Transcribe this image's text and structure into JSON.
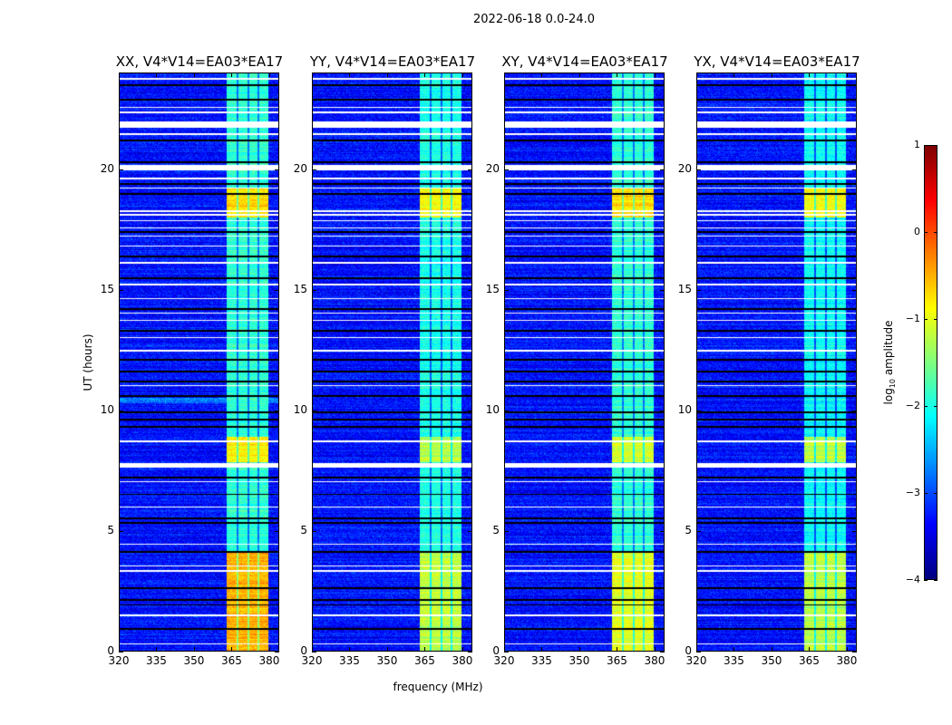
{
  "suptitle": "2022-06-18 0.0-24.0",
  "chart_data": {
    "type": "heatmap",
    "xlabel": "frequency (MHz)",
    "ylabel": "UT (hours)",
    "xlim": [
      320,
      384
    ],
    "ylim": [
      0,
      24
    ],
    "xticks": [
      "320",
      "335",
      "350",
      "365",
      "380"
    ],
    "xtick_values": [
      320,
      335,
      350,
      365,
      380
    ],
    "yticks": [
      "0",
      "5",
      "10",
      "15",
      "20"
    ],
    "ytick_values": [
      0,
      5,
      10,
      15,
      20
    ],
    "panels": [
      {
        "title": "XX, V4*V14=EA03*EA17",
        "band_levels": {
          "low": -0.5,
          "mid": -0.8,
          "upper": -0.7,
          "default": -1.9
        }
      },
      {
        "title": "YY, V4*V14=EA03*EA17",
        "band_levels": {
          "low": -1.2,
          "mid": -1.2,
          "upper": -0.9,
          "default": -2.0
        }
      },
      {
        "title": "XY, V4*V14=EA03*EA17",
        "band_levels": {
          "low": -1.0,
          "mid": -1.1,
          "upper": -0.7,
          "default": -1.9
        }
      },
      {
        "title": "YX, V4*V14=EA03*EA17",
        "band_levels": {
          "low": -1.2,
          "mid": -1.2,
          "upper": -0.9,
          "default": -2.1
        }
      }
    ],
    "features": {
      "background_level": -3.3,
      "band_mhz": [
        363,
        380
      ],
      "subbands_mhz": [
        [
          363,
          367.3
        ],
        [
          367.8,
          371.6
        ],
        [
          372.2,
          375.6
        ],
        [
          376.5,
          380
        ]
      ],
      "bright_intervals_hours": {
        "low": [
          0,
          4.1
        ],
        "mid": [
          7.85,
          8.9
        ],
        "upper": [
          18.0,
          19.2
        ]
      },
      "flagged_white_hours": [
        [
          0.25,
          0.32
        ],
        [
          1.45,
          1.52
        ],
        [
          3.28,
          3.34
        ],
        [
          3.5,
          3.56
        ],
        [
          4.4,
          4.45
        ],
        [
          5.95,
          6.0
        ],
        [
          7.0,
          7.05
        ],
        [
          7.62,
          7.8
        ],
        [
          8.68,
          8.74
        ],
        [
          11.0,
          11.05
        ],
        [
          12.45,
          12.52
        ],
        [
          13.0,
          13.05
        ],
        [
          13.7,
          13.76
        ],
        [
          14.0,
          14.06
        ],
        [
          14.6,
          14.65
        ],
        [
          15.2,
          15.26
        ],
        [
          16.1,
          16.15
        ],
        [
          16.8,
          16.85
        ],
        [
          17.2,
          17.25
        ],
        [
          17.55,
          17.6
        ],
        [
          17.85,
          17.9
        ],
        [
          18.1,
          18.15
        ],
        [
          18.25,
          18.3
        ],
        [
          19.2,
          19.26
        ],
        [
          19.6,
          19.65
        ],
        [
          19.98,
          20.2
        ],
        [
          21.45,
          21.5
        ],
        [
          21.75,
          22.0
        ],
        [
          22.35,
          22.4
        ],
        [
          22.55,
          22.6
        ],
        [
          23.75,
          23.8
        ]
      ],
      "dark_rows_hours": [
        0.9,
        1.9,
        2.1,
        2.6,
        4.1,
        5.3,
        5.5,
        6.5,
        7.2,
        9.3,
        9.6,
        9.9,
        10.6,
        11.2,
        11.6,
        12.1,
        13.3,
        14.2,
        15.5,
        16.4,
        17.4,
        19.0,
        19.4,
        20.3,
        21.2,
        22.9,
        23.5
      ],
      "xx_bright_row_hours": [
        10.3,
        10.5
      ]
    },
    "colorbar": {
      "label_prefix": "log",
      "label_sub": "10",
      "label_suffix": " amplitude",
      "range": [
        -4,
        1
      ],
      "ticks": [
        "1",
        "0",
        "−1",
        "−2",
        "−3",
        "−4"
      ],
      "tick_values": [
        1,
        0,
        -1,
        -2,
        -3,
        -4
      ],
      "colormap": "jet"
    }
  }
}
